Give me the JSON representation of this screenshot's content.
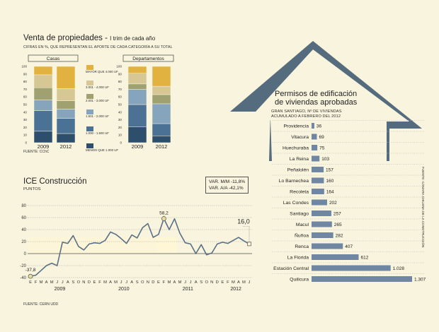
{
  "chart_data": [
    {
      "type": "bar",
      "subtype": "stacked-percent",
      "title": "Venta de propiedades",
      "title_suffix": "I trim de cada año",
      "subtitle": "CIFRAS EN %, QUE REPRESENTAN EL APORTE DE CADA CATEGORÍA A SU TOTAL",
      "source": "FUENTE: CChC",
      "groups": [
        "Casas",
        "Departamentos"
      ],
      "categories": [
        "2009",
        "2012"
      ],
      "yticks": [
        0,
        10,
        20,
        30,
        40,
        50,
        60,
        70,
        80,
        90,
        100
      ],
      "legend": [
        "MENOS QUE 1.000 UF",
        "1.000 - 1.500 UF",
        "1.501 - 2.000 UF",
        "2.001 - 3.000 UF",
        "3.001 - 4.000 UF",
        "MAYOR QUE 4.000 UF"
      ],
      "colors": [
        "#2e4f6c",
        "#4b7294",
        "#86a5bd",
        "#9fa171",
        "#d6c795",
        "#e2b240"
      ],
      "series": {
        "Casas": {
          "2009": [
            15,
            27,
            14,
            16,
            17,
            11
          ],
          "2012": [
            12,
            20,
            12,
            11,
            16,
            29
          ]
        },
        "Departamentos": {
          "2009": [
            21,
            29,
            20,
            7,
            14,
            9
          ],
          "2012": [
            9,
            16,
            26,
            12,
            11,
            26
          ]
        }
      }
    },
    {
      "type": "line",
      "title": "ICE Construcción",
      "subtitle": "PUNTOS",
      "source": "FUENTE: CERN UDD",
      "ylim": [
        -40,
        80
      ],
      "yticks": [
        -40,
        -20,
        0,
        20,
        40,
        60,
        80
      ],
      "month_labels": [
        "E",
        "F",
        "M",
        "A",
        "M",
        "J",
        "J",
        "A",
        "S",
        "O",
        "N",
        "D",
        "E",
        "F",
        "M",
        "A",
        "M",
        "J",
        "J",
        "A",
        "S",
        "O",
        "N",
        "D",
        "E",
        "F",
        "M",
        "A",
        "M",
        "J",
        "J",
        "A",
        "S",
        "O",
        "N",
        "D",
        "E",
        "F",
        "M",
        "A",
        "M",
        "J"
      ],
      "year_labels": [
        {
          "label": "2009",
          "index": 5.5
        },
        {
          "label": "2010",
          "index": 17.5
        },
        {
          "label": "2011",
          "index": 29.5
        },
        {
          "label": "2012",
          "index": 38.5
        }
      ],
      "values": [
        -37.8,
        -36,
        -28,
        -20,
        -16,
        -20,
        19,
        17,
        30,
        12,
        6,
        16,
        18,
        17,
        22,
        36,
        32,
        25,
        17,
        31,
        26,
        43,
        50,
        27,
        32,
        58.2,
        40,
        58,
        34,
        18,
        16,
        0,
        15,
        -2,
        1,
        16,
        19,
        17,
        22,
        27,
        21,
        16.0
      ],
      "bands": [
        {
          "from": 0,
          "to": 27
        },
        {
          "from": 24,
          "to": 27
        }
      ],
      "annotations": [
        {
          "label": "-37,8",
          "index": 0
        },
        {
          "label": "58,2",
          "index": 25
        },
        {
          "label": "16,0",
          "index": 41
        }
      ],
      "var_mm": "VAR. M/M  -11,8%",
      "var_aa": "VAR. A/A  -42,1%"
    },
    {
      "type": "bar",
      "orientation": "horizontal",
      "title_line1": "Permisos de edificación",
      "title_line2": "de viviendas aprobadas",
      "subtitle_line1": "GRAN SANTIAGO, Nº DE VIVIENDAS",
      "subtitle_line2": "ACUMULADO A FEBRERO DEL 2012",
      "source": "FUENTE: CÁMARA CHILENA DE LA CONSTRUCCIÓN",
      "categories": [
        "Providencia",
        "Vitacura",
        "Huechuraba",
        "La Reina",
        "Peñalolén",
        "Lo Barnechea",
        "Recoleta",
        "Las Condes",
        "Santiago",
        "Macul",
        "Ñuñoa",
        "Renca",
        "La Florida",
        "Estación Central",
        "Quilicura"
      ],
      "values": [
        36,
        69,
        75,
        103,
        157,
        160,
        164,
        202,
        257,
        265,
        282,
        407,
        612,
        1028,
        1307
      ],
      "value_labels": [
        "36",
        "69",
        "75",
        "103",
        "157",
        "160",
        "164",
        "202",
        "257",
        "265",
        "282",
        "407",
        "612",
        "1.028",
        "1.307"
      ]
    }
  ]
}
